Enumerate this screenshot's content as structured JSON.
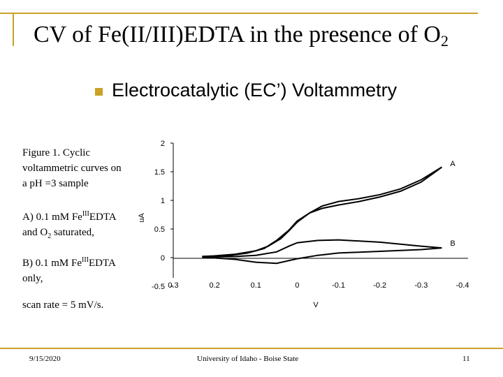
{
  "slide": {
    "title_main": "CV of Fe(II/III)EDTA in the presence of O",
    "title_sub": "2",
    "bullet_heading": "Electrocatalytic (EC’) Voltammetry",
    "figure_caption": [
      "Figure 1. Cyclic",
      "voltammetric curves on",
      "a pH =3 sample"
    ],
    "item_a": {
      "l1_pre": "A) 0.1 mM Fe",
      "l1_sup": "III",
      "l1_post": "EDTA",
      "l2_pre": "and O",
      "l2_sub": "2",
      "l2_post": " saturated,"
    },
    "item_b": {
      "l1_pre": "B) 0.1 mM Fe",
      "l1_sup": "III",
      "l1_post": "EDTA",
      "l2": "only,"
    },
    "scan_rate": "scan rate = 5 mV/s.",
    "footer_date": "9/15/2020",
    "footer_center": "University of Idaho - Boise State",
    "footer_page": "11"
  },
  "chart_data": {
    "type": "line",
    "title": "",
    "xlabel": "V",
    "ylabel": "uA",
    "xlim": [
      0.3,
      -0.4
    ],
    "ylim": [
      -0.5,
      2
    ],
    "x_ticks": [
      "0.3",
      "0.2",
      "0.1",
      "0",
      "-0.1",
      "-0.2",
      "-0.3",
      "-0.4"
    ],
    "x_tick_values": [
      0.3,
      0.2,
      0.1,
      0,
      -0.1,
      -0.2,
      -0.3,
      -0.4
    ],
    "y_ticks": [
      "2",
      "1.5",
      "1",
      "0.5",
      "0",
      "-0.5"
    ],
    "y_tick_values": [
      2,
      1.5,
      1,
      0.5,
      0,
      -0.5
    ],
    "grid": false,
    "series": [
      {
        "name": "A",
        "forward": {
          "x": [
            0.23,
            0.2,
            0.15,
            0.1,
            0.07,
            0.04,
            0.02,
            0.0,
            -0.03,
            -0.06,
            -0.1,
            -0.15,
            -0.2,
            -0.25,
            -0.3,
            -0.35
          ],
          "y": [
            0.02,
            0.03,
            0.06,
            0.12,
            0.2,
            0.33,
            0.47,
            0.62,
            0.78,
            0.9,
            0.98,
            1.03,
            1.1,
            1.2,
            1.36,
            1.58
          ]
        },
        "reverse": {
          "x": [
            -0.35,
            -0.3,
            -0.25,
            -0.2,
            -0.15,
            -0.1,
            -0.06,
            -0.03,
            0.0,
            0.02,
            0.05,
            0.08,
            0.12,
            0.17,
            0.23
          ],
          "y": [
            1.58,
            1.32,
            1.16,
            1.06,
            0.98,
            0.92,
            0.86,
            0.78,
            0.64,
            0.48,
            0.3,
            0.16,
            0.08,
            0.03,
            0.02
          ]
        }
      },
      {
        "name": "B",
        "forward": {
          "x": [
            0.23,
            0.15,
            0.1,
            0.05,
            0.02,
            0.0,
            -0.05,
            -0.1,
            -0.2,
            -0.3,
            -0.35
          ],
          "y": [
            0.01,
            0.02,
            0.04,
            0.1,
            0.2,
            0.26,
            0.3,
            0.31,
            0.27,
            0.2,
            0.17
          ]
        },
        "reverse": {
          "x": [
            -0.35,
            -0.3,
            -0.2,
            -0.1,
            -0.05,
            0.0,
            0.05,
            0.1,
            0.15,
            0.23
          ],
          "y": [
            0.17,
            0.14,
            0.11,
            0.08,
            0.04,
            -0.02,
            -0.1,
            -0.08,
            -0.03,
            0.01
          ]
        }
      }
    ]
  }
}
